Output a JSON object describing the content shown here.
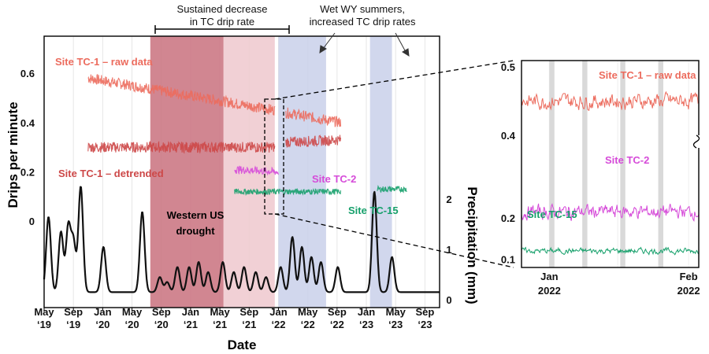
{
  "colors": {
    "raw": "#ec6b5d",
    "detrended": "#cd4848",
    "tc2": "#d64bd9",
    "tc15": "#16a06b",
    "precip": "#111111",
    "drought_dark": "#c9717e",
    "drought_light": "#efc8ce",
    "wet": "#c9d0ea",
    "inset_band": "#cccccc"
  },
  "chart_data": [
    {
      "type": "line",
      "title": "",
      "xlabel": "Date",
      "ylabel": "Drips per minute",
      "y2label": "Precipitation (mm)",
      "x_ticks": [
        {
          "line1": "May",
          "line2": "‘19"
        },
        {
          "line1": "Sep",
          "line2": "‘19"
        },
        {
          "line1": "Jan",
          "line2": "‘20"
        },
        {
          "line1": "May",
          "line2": "‘20"
        },
        {
          "line1": "Sep",
          "line2": "‘20"
        },
        {
          "line1": "Jan",
          "line2": "‘21"
        },
        {
          "line1": "May",
          "line2": "‘21"
        },
        {
          "line1": "Sep",
          "line2": "‘21"
        },
        {
          "line1": "Jan",
          "line2": "‘22"
        },
        {
          "line1": "May",
          "line2": "‘22"
        },
        {
          "line1": "Sep",
          "line2": "‘22"
        },
        {
          "line1": "Jan",
          "line2": "‘23"
        },
        {
          "line1": "May",
          "line2": "‘23"
        },
        {
          "line1": "Sep",
          "line2": "‘23"
        }
      ],
      "x_range_months": [
        0,
        54
      ],
      "y_ticks": [
        "0.6",
        "0.4",
        "0.2",
        "0"
      ],
      "y_range": [
        -0.35,
        0.75
      ],
      "y2_ticks": [
        "2",
        "1",
        "0"
      ],
      "y2_range": [
        0,
        5.4
      ],
      "shaded_regions": [
        {
          "name": "drought-strong",
          "from_month": 14.5,
          "to_month": 24.5,
          "color_key": "drought_dark"
        },
        {
          "name": "drought-light",
          "from_month": 24.5,
          "to_month": 31.5,
          "color_key": "drought_light"
        },
        {
          "name": "wet-2022",
          "from_month": 32,
          "to_month": 38.5,
          "color_key": "wet"
        },
        {
          "name": "wet-2023",
          "from_month": 44.5,
          "to_month": 47.5,
          "color_key": "wet"
        }
      ],
      "series": [
        {
          "name": "Site TC-1 – raw data",
          "color_key": "raw",
          "segments": [
            {
              "from": 6,
              "to": 31.5,
              "start": 0.58,
              "end": 0.45,
              "noise": 0.022
            },
            {
              "from": 33,
              "to": 40.5,
              "start": 0.44,
              "end": 0.4,
              "noise": 0.022
            }
          ]
        },
        {
          "name": "Site TC-1 – detrended",
          "color_key": "detrended",
          "segments": [
            {
              "from": 6,
              "to": 31.5,
              "start": 0.3,
              "end": 0.3,
              "noise": 0.022
            },
            {
              "from": 33,
              "to": 40.5,
              "start": 0.32,
              "end": 0.33,
              "noise": 0.022
            }
          ]
        },
        {
          "name": "Site TC-2",
          "color_key": "tc2",
          "segments": [
            {
              "from": 26,
              "to": 32,
              "start": 0.21,
              "end": 0.2,
              "noise": 0.016
            }
          ]
        },
        {
          "name": "Site TC-15",
          "color_key": "tc15",
          "segments": [
            {
              "from": 26,
              "to": 40.5,
              "start": 0.12,
              "end": 0.12,
              "noise": 0.012
            },
            {
              "from": 45.5,
              "to": 49.5,
              "start": 0.13,
              "end": 0.13,
              "noise": 0.012
            }
          ]
        },
        {
          "name": "Precipitation",
          "color_key": "precip",
          "axis": "y2",
          "base": 0.15,
          "peaks": [
            [
              0.6,
              1.5
            ],
            [
              2.3,
              1.2
            ],
            [
              3.3,
              1.3
            ],
            [
              4.0,
              1.0
            ],
            [
              5.0,
              2.1
            ],
            [
              8.1,
              0.9
            ],
            [
              13.4,
              1.6
            ],
            [
              15.8,
              0.3
            ],
            [
              16.8,
              0.2
            ],
            [
              18.2,
              0.5
            ],
            [
              19.8,
              0.5
            ],
            [
              21.1,
              0.6
            ],
            [
              22.4,
              0.4
            ],
            [
              24.4,
              0.6
            ],
            [
              25.9,
              0.4
            ],
            [
              27.3,
              0.5
            ],
            [
              28.9,
              0.4
            ],
            [
              30.3,
              0.3
            ],
            [
              32.3,
              0.5
            ],
            [
              33.9,
              1.1
            ],
            [
              35.2,
              0.9
            ],
            [
              36.5,
              0.7
            ],
            [
              37.8,
              0.6
            ],
            [
              40.1,
              0.5
            ],
            [
              45.1,
              2.0
            ],
            [
              47.5,
              0.7
            ]
          ]
        }
      ],
      "annotations": {
        "drought_bracket_text": [
          "Sustained decrease",
          "in TC drip rate"
        ],
        "wet_text": [
          "Wet WY summers,",
          "increased TC drip rates"
        ],
        "drought_label": [
          "Western US",
          "drought"
        ]
      }
    },
    {
      "type": "line",
      "title": "inset",
      "xlabel": "",
      "ylabel": "",
      "x_ticks": [
        {
          "line1": "Jan",
          "line2": "2022"
        },
        {
          "line1": "Feb",
          "line2": "2022"
        }
      ],
      "upper_y_ticks": [
        "0.5",
        "0.4"
      ],
      "upper_y_range": [
        0.4,
        0.5
      ],
      "lower_y_ticks": [
        "0.2",
        "0.1"
      ],
      "lower_y_range": [
        0.08,
        0.37
      ],
      "grey_bands_days": [
        [
          5.5,
          6.5
        ],
        [
          12,
          13
        ],
        [
          19.5,
          20.5
        ],
        [
          27,
          28
        ]
      ],
      "series": [
        {
          "name": "Site TC-1 – raw data",
          "color_key": "raw",
          "mean": 0.45,
          "noise": 0.02
        },
        {
          "name": "Site TC-2",
          "color_key": "tc2",
          "mean": 0.215,
          "noise": 0.03
        },
        {
          "name": "Site TC-15",
          "color_key": "tc15",
          "mean": 0.12,
          "noise": 0.012
        }
      ]
    }
  ]
}
